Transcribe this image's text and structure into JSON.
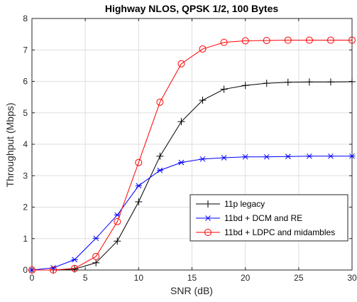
{
  "chart_data": {
    "type": "line",
    "title": "Highway NLOS, QPSK 1/2, 100 Bytes",
    "xlabel": "SNR (dB)",
    "ylabel": "Throughput (Mbps)",
    "xlim": [
      0,
      30
    ],
    "ylim": [
      0,
      8
    ],
    "xticks": [
      0,
      5,
      10,
      15,
      20,
      25,
      30
    ],
    "yticks": [
      0,
      1,
      2,
      3,
      4,
      5,
      6,
      7,
      8
    ],
    "grid": true,
    "legend_position": "right",
    "x": [
      0,
      2,
      4,
      6,
      8,
      10,
      12,
      14,
      16,
      18,
      20,
      22,
      24,
      26,
      28,
      30
    ],
    "series": [
      {
        "name": "11p legacy",
        "color": "#000000",
        "marker": "plus",
        "values": [
          0,
          0,
          0.03,
          0.23,
          0.92,
          2.17,
          3.62,
          4.72,
          5.4,
          5.75,
          5.87,
          5.94,
          5.97,
          5.98,
          5.98,
          5.99
        ]
      },
      {
        "name": "11bd + DCM and RE",
        "color": "#0000ff",
        "marker": "asterisk",
        "values": [
          0,
          0.07,
          0.33,
          1.01,
          1.75,
          2.68,
          3.17,
          3.42,
          3.53,
          3.57,
          3.6,
          3.6,
          3.61,
          3.62,
          3.62,
          3.62
        ]
      },
      {
        "name": "11bd + LDPC and midambles",
        "color": "#ff0000",
        "marker": "circle",
        "values": [
          0,
          0,
          0.05,
          0.43,
          1.54,
          3.42,
          5.34,
          6.56,
          7.03,
          7.24,
          7.29,
          7.3,
          7.31,
          7.31,
          7.31,
          7.31
        ]
      }
    ]
  }
}
